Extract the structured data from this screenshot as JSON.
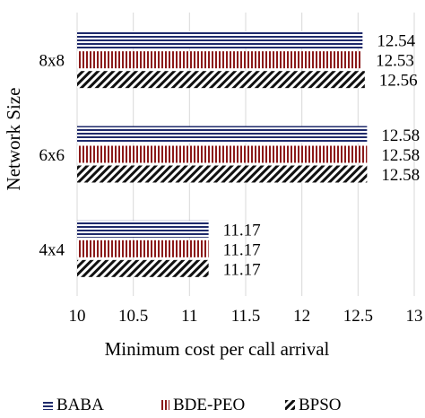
{
  "chart_data": {
    "type": "bar",
    "orientation": "horizontal",
    "categories": [
      "8x8",
      "6x6",
      "4x4"
    ],
    "series": [
      {
        "name": "BABA",
        "values": [
          12.54,
          12.58,
          11.17
        ],
        "color": "#1f2a6b",
        "pattern": "horizontal-stripes"
      },
      {
        "name": "BDE-PEO",
        "values": [
          12.53,
          12.58,
          11.17
        ],
        "color": "#8b1a1a",
        "pattern": "vertical-stripes"
      },
      {
        "name": "BPSO",
        "values": [
          12.56,
          12.58,
          11.17
        ],
        "color": "#111111",
        "pattern": "diagonal-stripes"
      }
    ],
    "data_labels": [
      [
        "12.54",
        "12.53",
        "12.56"
      ],
      [
        "12.58",
        "12.58",
        "12.58"
      ],
      [
        "11.17",
        "11.17",
        "11.17"
      ]
    ],
    "xlabel": "Minimum cost per call arrival",
    "ylabel": "Network Size",
    "xlim": [
      10,
      13
    ],
    "xticks": [
      "10",
      "10.5",
      "11",
      "11.5",
      "12",
      "12.5",
      "13"
    ],
    "grid": "vertical",
    "legend_position": "bottom"
  }
}
